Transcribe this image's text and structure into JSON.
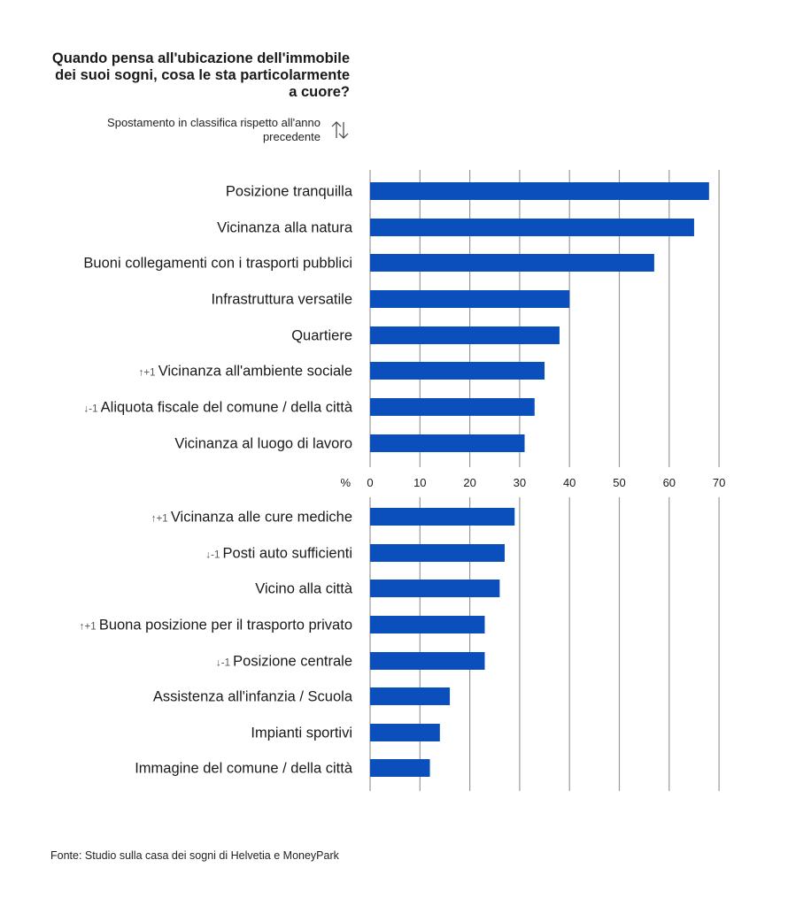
{
  "title": "Quando pensa all'ubicazione dell'immobile dei suoi sogni, cosa le sta particolarmente a cuore?",
  "subtitle": "Spostamento in classifica rispetto all'anno precedente",
  "source": "Fonte: Studio sulla casa dei sogni di Helvetia e MoneyPark",
  "icons": {
    "ranking_change": "up-down-arrows-icon"
  },
  "colors": {
    "bar": "#0b4fbd",
    "grid": "#9a9a9a",
    "text": "#1a1a1a",
    "change": "#555555"
  },
  "chart_data": {
    "type": "bar",
    "orientation": "horizontal",
    "xlabel": "%",
    "xlim": [
      0,
      70
    ],
    "xticks": [
      "0",
      "10",
      "20",
      "30",
      "40",
      "50",
      "60",
      "70"
    ],
    "grid": true,
    "categories": [
      "Posizione tranquilla",
      "Vicinanza alla natura",
      "Buoni collegamenti con i trasporti pubblici",
      "Infrastruttura versatile",
      "Quartiere",
      "Vicinanza all'ambiente sociale",
      "Aliquota fiscale del comune / della città",
      "Vicinanza al luogo di lavoro",
      "Vicinanza alle cure mediche",
      "Posti auto sufficienti",
      "Vicino alla città",
      "Buona posizione per il trasporto privato",
      "Posizione centrale",
      "Assistenza all'infanzia / Scuola",
      "Impianti sportivi",
      "Immagine del comune / della città"
    ],
    "values": [
      68,
      65,
      57,
      40,
      38,
      35,
      33,
      31,
      29,
      27,
      26,
      23,
      23,
      16,
      14,
      12
    ],
    "rank_change": [
      "",
      "",
      "",
      "",
      "",
      "↑+1",
      "↓-1",
      "",
      "↑+1",
      "↓-1",
      "",
      "↑+1",
      "↓-1",
      "",
      "",
      ""
    ]
  }
}
